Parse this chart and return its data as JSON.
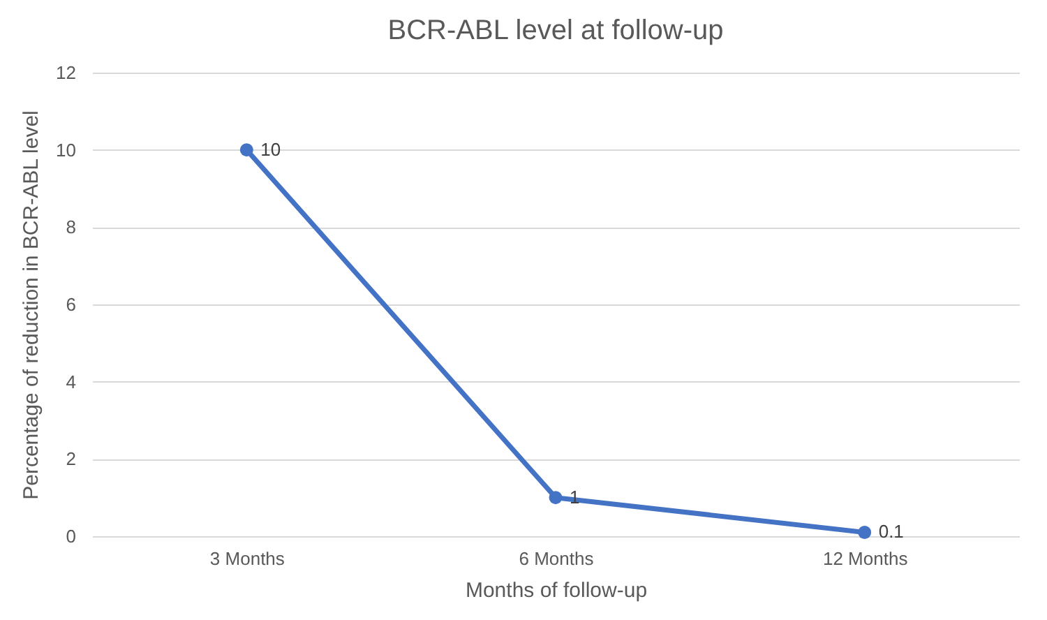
{
  "chart_data": {
    "type": "line",
    "title": "BCR-ABL level at follow-up",
    "xlabel": "Months of follow-up",
    "ylabel": "Percentage of reduction in BCR-ABL level",
    "categories": [
      "3 Months",
      "6 Months",
      "12 Months"
    ],
    "series": [
      {
        "color": "#4472c4",
        "values": [
          10,
          1,
          0.1
        ]
      }
    ],
    "ylim": [
      0,
      12
    ],
    "yticks": [
      0,
      2,
      4,
      6,
      8,
      10,
      12
    ],
    "grid": "y",
    "data_labels": true,
    "marker": "circle",
    "line_style": "solid",
    "legend": false
  }
}
